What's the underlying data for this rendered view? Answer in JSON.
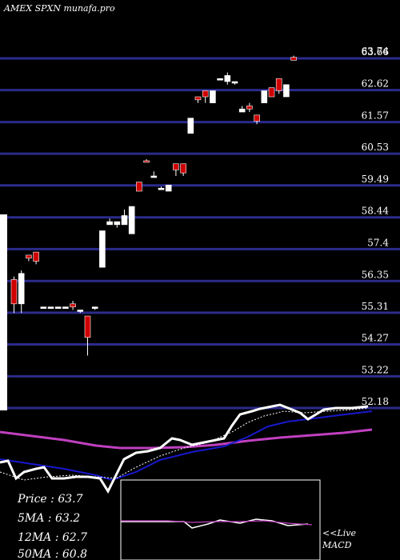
{
  "title": "AMEX  SPXN  munafa.pro",
  "chart_data": {
    "type": "candlestick",
    "y_ticks": [
      63.66,
      62.62,
      61.57,
      60.53,
      59.49,
      58.44,
      57.4,
      56.35,
      55.31,
      54.27,
      53.22,
      52.18
    ],
    "top_label": "63.74",
    "ylim": [
      52.18,
      63.74
    ],
    "candles": [
      {
        "o": 56.4,
        "c": 55.6,
        "h": 56.5,
        "l": 55.3,
        "bull": false
      },
      {
        "o": 55.6,
        "c": 56.6,
        "h": 56.7,
        "l": 55.3,
        "bull": true
      },
      {
        "o": 57.2,
        "c": 57.1,
        "h": 57.2,
        "l": 57.0,
        "bull": false
      },
      {
        "o": 57.0,
        "c": 57.3,
        "h": 57.3,
        "l": 56.9,
        "bull": false
      },
      {
        "o": 55.5,
        "c": 55.45,
        "h": 55.5,
        "l": 55.45,
        "bull": true
      },
      {
        "o": 55.5,
        "c": 55.45,
        "h": 55.5,
        "l": 55.45,
        "bull": true
      },
      {
        "o": 55.5,
        "c": 55.45,
        "h": 55.5,
        "l": 55.45,
        "bull": true
      },
      {
        "o": 55.5,
        "c": 55.45,
        "h": 55.5,
        "l": 55.45,
        "bull": true
      },
      {
        "o": 55.6,
        "c": 55.5,
        "h": 55.7,
        "l": 55.4,
        "bull": false
      },
      {
        "o": 55.4,
        "c": 55.35,
        "h": 55.4,
        "l": 55.3,
        "bull": true
      },
      {
        "o": 55.2,
        "c": 54.5,
        "h": 55.2,
        "l": 53.9,
        "bull": false
      },
      {
        "o": 55.5,
        "c": 55.45,
        "h": 55.5,
        "l": 55.4,
        "bull": true
      },
      {
        "o": 56.8,
        "c": 58.0,
        "h": 58.0,
        "l": 56.8,
        "bull": true
      },
      {
        "o": 58.2,
        "c": 58.3,
        "h": 58.4,
        "l": 58.2,
        "bull": true
      },
      {
        "o": 58.2,
        "c": 58.3,
        "h": 58.3,
        "l": 58.1,
        "bull": true
      },
      {
        "o": 58.2,
        "c": 58.5,
        "h": 58.7,
        "l": 58.2,
        "bull": true
      },
      {
        "o": 57.9,
        "c": 58.8,
        "h": 58.8,
        "l": 57.9,
        "bull": true
      },
      {
        "o": 59.3,
        "c": 59.6,
        "h": 59.6,
        "l": 59.3,
        "bull": false
      },
      {
        "o": 60.3,
        "c": 60.3,
        "h": 60.35,
        "l": 60.25,
        "bull": false
      },
      {
        "o": 59.8,
        "c": 59.8,
        "h": 59.95,
        "l": 59.8,
        "bull": true
      },
      {
        "o": 59.4,
        "c": 59.4,
        "h": 59.45,
        "l": 59.35,
        "bull": true
      },
      {
        "o": 59.3,
        "c": 59.5,
        "h": 59.5,
        "l": 59.3,
        "bull": true
      },
      {
        "o": 60.0,
        "c": 60.2,
        "h": 60.2,
        "l": 59.8,
        "bull": false
      },
      {
        "o": 59.9,
        "c": 60.2,
        "h": 60.2,
        "l": 59.8,
        "bull": false
      },
      {
        "o": 61.2,
        "c": 61.7,
        "h": 61.7,
        "l": 61.2,
        "bull": true
      },
      {
        "o": 62.4,
        "c": 62.3,
        "h": 62.4,
        "l": 62.2,
        "bull": false
      },
      {
        "o": 62.6,
        "c": 62.4,
        "h": 62.6,
        "l": 62.2,
        "bull": false
      },
      {
        "o": 62.6,
        "c": 62.2,
        "h": 62.6,
        "l": 62.2,
        "bull": true
      },
      {
        "o": 63.0,
        "c": 63.0,
        "h": 63.0,
        "l": 63.0,
        "bull": true
      },
      {
        "o": 62.9,
        "c": 63.1,
        "h": 63.2,
        "l": 62.8,
        "bull": true
      },
      {
        "o": 62.9,
        "c": 62.85,
        "h": 62.9,
        "l": 62.8,
        "bull": true
      },
      {
        "o": 61.9,
        "c": 62.0,
        "h": 62.1,
        "l": 61.9,
        "bull": true
      },
      {
        "o": 62.1,
        "c": 62.0,
        "h": 62.2,
        "l": 61.9,
        "bull": false
      },
      {
        "o": 61.8,
        "c": 61.6,
        "h": 61.8,
        "l": 61.5,
        "bull": false
      },
      {
        "o": 62.2,
        "c": 62.6,
        "h": 62.6,
        "l": 62.2,
        "bull": true
      },
      {
        "o": 62.7,
        "c": 62.4,
        "h": 62.7,
        "l": 62.4,
        "bull": false
      },
      {
        "o": 62.6,
        "c": 63.0,
        "h": 63.0,
        "l": 62.5,
        "bull": false
      },
      {
        "o": 62.4,
        "c": 62.8,
        "h": 62.8,
        "l": 62.4,
        "bull": true
      },
      {
        "o": 63.7,
        "c": 63.6,
        "h": 63.75,
        "l": 63.6,
        "bull": false
      }
    ],
    "stats": [
      {
        "label": "Price",
        "value": "63.7"
      },
      {
        "label": "5MA",
        "value": "63.2"
      },
      {
        "label": "12MA",
        "value": "62.7"
      },
      {
        "label": "50MA",
        "value": "60.8"
      }
    ],
    "macd_label": "<<Live MACD",
    "colors": {
      "background": "#000000",
      "gridline": "#2b2b8c",
      "bull": "#ffffff",
      "bear": "#d00000",
      "ma_short": "#ffffff",
      "ma_mid": "#1818cc",
      "ma_long": "#c040c0"
    }
  }
}
